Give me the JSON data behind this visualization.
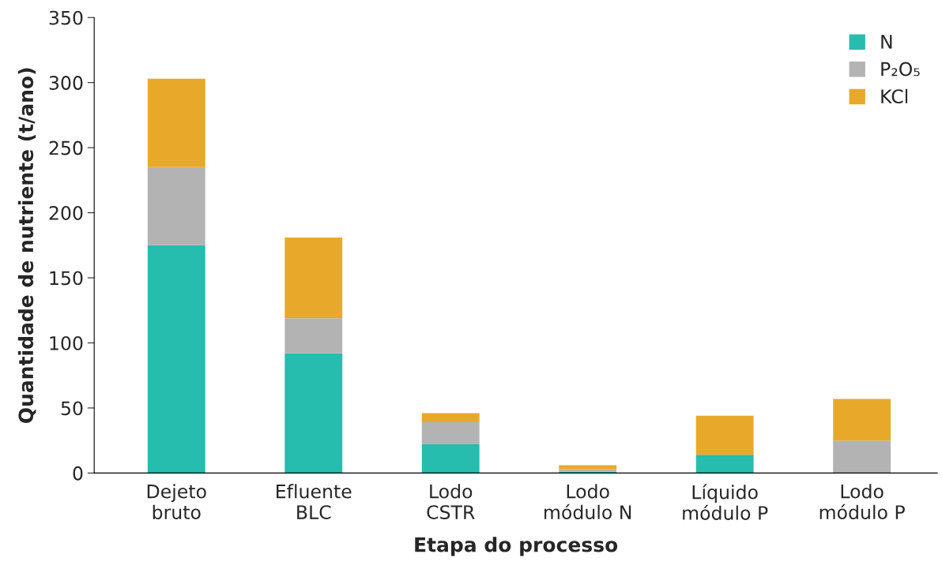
{
  "chart_data": {
    "type": "bar",
    "stacked": true,
    "xlabel": "Etapa do processo",
    "ylabel": "Quantidade de nutriente (t/ano)",
    "categories": [
      "Dejeto\nbruto",
      "Efluente\nBLC",
      "Lodo\nCSTR",
      "Lodo\nmódulo N",
      "Líquido\nmódulo P",
      "Lodo\nmódulo P"
    ],
    "series": [
      {
        "name": "N",
        "color": "#26bcae",
        "values": [
          175,
          92,
          22,
          1,
          14,
          0
        ]
      },
      {
        "name": "P₂O₅",
        "color": "#b3b3b4",
        "values": [
          60,
          27,
          17,
          2,
          0,
          25
        ]
      },
      {
        "name": "KCl",
        "color": "#e8a92b",
        "values": [
          68,
          62,
          7,
          3,
          30,
          32
        ]
      }
    ],
    "ylim": [
      0,
      350
    ],
    "yticks": [
      0,
      50,
      100,
      150,
      200,
      250,
      300,
      350
    ],
    "grid": false,
    "legend": "top right"
  }
}
